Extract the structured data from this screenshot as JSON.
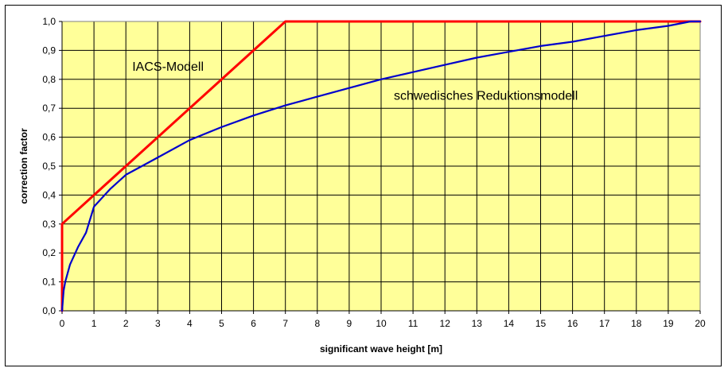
{
  "chart_data": {
    "type": "line",
    "title": "",
    "xlabel": "significant wave height [m]",
    "ylabel": "correction factor",
    "xlim": [
      0,
      20
    ],
    "ylim": [
      0,
      1.0
    ],
    "x_ticks": [
      "0",
      "1",
      "2",
      "3",
      "4",
      "5",
      "6",
      "7",
      "8",
      "9",
      "10",
      "11",
      "12",
      "13",
      "14",
      "15",
      "16",
      "17",
      "18",
      "19",
      "20"
    ],
    "y_ticks": [
      "0,0",
      "0,1",
      "0,2",
      "0,3",
      "0,4",
      "0,5",
      "0,6",
      "0,7",
      "0,8",
      "0,9",
      "1,0"
    ],
    "grid": true,
    "plot_background": "#ffff99",
    "series": [
      {
        "name": "IACS-Modell",
        "color": "#ff0000",
        "points": [
          [
            0,
            0.0
          ],
          [
            0,
            0.3
          ],
          [
            7,
            1.0
          ],
          [
            20,
            1.0
          ]
        ]
      },
      {
        "name": "schwedisches Reduktionsmodell",
        "color": "#0000cc",
        "points": [
          [
            0,
            0.0
          ],
          [
            0.05,
            0.07
          ],
          [
            0.1,
            0.1
          ],
          [
            0.25,
            0.16
          ],
          [
            0.5,
            0.22
          ],
          [
            0.75,
            0.27
          ],
          [
            1,
            0.36
          ],
          [
            1.5,
            0.42
          ],
          [
            2,
            0.47
          ],
          [
            2.5,
            0.5
          ],
          [
            3,
            0.53
          ],
          [
            4,
            0.59
          ],
          [
            5,
            0.635
          ],
          [
            6,
            0.675
          ],
          [
            7,
            0.71
          ],
          [
            8,
            0.74
          ],
          [
            9,
            0.77
          ],
          [
            10,
            0.8
          ],
          [
            11,
            0.825
          ],
          [
            12,
            0.85
          ],
          [
            13,
            0.875
          ],
          [
            14,
            0.895
          ],
          [
            15,
            0.915
          ],
          [
            16,
            0.93
          ],
          [
            17,
            0.95
          ],
          [
            18,
            0.97
          ],
          [
            19,
            0.985
          ],
          [
            19.7,
            1.0
          ],
          [
            20,
            1.0
          ]
        ]
      }
    ],
    "annotations": [
      {
        "text": "IACS-Modell",
        "x": 2.2,
        "y": 0.83
      },
      {
        "text": "schwedisches Reduktionsmodell",
        "x": 10.4,
        "y": 0.73
      }
    ]
  }
}
